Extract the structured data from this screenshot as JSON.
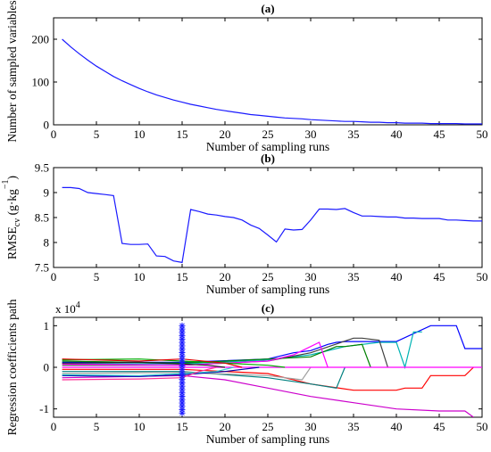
{
  "chart_data": [
    {
      "type": "line",
      "title": "(a)",
      "xlabel": "Number of sampling runs",
      "ylabel": "Number of sampled variables",
      "xlim": [
        0,
        50
      ],
      "ylim": [
        0,
        250
      ],
      "xticks": [
        0,
        5,
        10,
        15,
        20,
        25,
        30,
        35,
        40,
        45,
        50
      ],
      "yticks": [
        0,
        100,
        200
      ],
      "grid": false,
      "series": [
        {
          "color": "#1a1aff",
          "x": [
            1,
            2,
            3,
            4,
            5,
            6,
            7,
            8,
            9,
            10,
            11,
            12,
            13,
            14,
            15,
            16,
            17,
            18,
            19,
            20,
            21,
            22,
            23,
            24,
            25,
            26,
            27,
            28,
            29,
            30,
            31,
            32,
            33,
            34,
            35,
            36,
            37,
            38,
            39,
            40,
            41,
            42,
            43,
            44,
            45,
            46,
            47,
            48,
            49,
            50
          ],
          "y": [
            200,
            182,
            166,
            151,
            137,
            125,
            113,
            103,
            94,
            85,
            77,
            70,
            64,
            58,
            53,
            48,
            44,
            40,
            36,
            33,
            30,
            27,
            24,
            22,
            20,
            18,
            16,
            15,
            14,
            12,
            11,
            10,
            9,
            8,
            8,
            7,
            6,
            6,
            5,
            5,
            4,
            4,
            4,
            3,
            3,
            3,
            3,
            2,
            2,
            2
          ]
        }
      ]
    },
    {
      "type": "line",
      "title": "(b)",
      "xlabel": "Number of sampling runs",
      "ylabel_main": "RMSE",
      "ylabel_sub": "cv",
      "ylabel_unit": " (g·kg",
      "ylabel_exp": "−1",
      "ylabel_end": ")",
      "xlim": [
        0,
        50
      ],
      "ylim": [
        7.5,
        9.5
      ],
      "xticks": [
        0,
        5,
        10,
        15,
        20,
        25,
        30,
        35,
        40,
        45,
        50
      ],
      "yticks": [
        7.5,
        8,
        8.5,
        9,
        9.5
      ],
      "grid": false,
      "series": [
        {
          "color": "#1a1aff",
          "x": [
            1,
            2,
            3,
            4,
            5,
            6,
            7,
            8,
            9,
            10,
            11,
            12,
            13,
            14,
            15,
            16,
            17,
            18,
            19,
            20,
            21,
            22,
            23,
            24,
            25,
            26,
            27,
            28,
            29,
            30,
            31,
            32,
            33,
            34,
            35,
            36,
            37,
            38,
            39,
            40,
            41,
            42,
            43,
            44,
            45,
            46,
            47,
            48,
            49,
            50
          ],
          "y": [
            9.1,
            9.1,
            9.08,
            9.0,
            8.98,
            8.96,
            8.94,
            7.98,
            7.96,
            7.96,
            7.97,
            7.73,
            7.72,
            7.63,
            7.6,
            8.66,
            8.62,
            8.57,
            8.55,
            8.52,
            8.5,
            8.45,
            8.35,
            8.28,
            8.15,
            8.01,
            8.27,
            8.25,
            8.26,
            8.45,
            8.67,
            8.67,
            8.66,
            8.68,
            8.6,
            8.53,
            8.53,
            8.52,
            8.51,
            8.51,
            8.49,
            8.49,
            8.48,
            8.48,
            8.48,
            8.45,
            8.45,
            8.44,
            8.43,
            8.43
          ]
        }
      ]
    },
    {
      "type": "line",
      "title": "(c)",
      "xlabel": "Number of sampling runs",
      "ylabel": "Regression coefficients path",
      "yscale_label": "x 10",
      "yscale_exp": "4",
      "xlim": [
        0,
        50
      ],
      "ylim": [
        -1.2,
        1.2
      ],
      "xticks": [
        0,
        5,
        10,
        15,
        20,
        25,
        30,
        35,
        40,
        45,
        50
      ],
      "yticks": [
        -1,
        0,
        1
      ],
      "grid": false,
      "marker_line": {
        "x": 15,
        "color": "#1a1aff",
        "y_from": -1.1,
        "y_to": 1.0
      },
      "series": [
        {
          "color": "#0000ff",
          "x": [
            1,
            15,
            25,
            28,
            30,
            32,
            33,
            34,
            39,
            40,
            44,
            45,
            47,
            48,
            50
          ],
          "y": [
            0.12,
            0.12,
            0.2,
            0.35,
            0.4,
            0.55,
            0.6,
            0.62,
            0.62,
            0.62,
            1.0,
            1.0,
            1.0,
            0.45,
            0.45
          ]
        },
        {
          "color": "#00b3b3",
          "x": [
            1,
            15,
            25,
            30,
            34,
            38,
            40,
            41,
            42,
            43
          ],
          "y": [
            0.1,
            0.08,
            0.18,
            0.3,
            0.5,
            0.6,
            0.6,
            0.0,
            0.85,
            0.85
          ]
        },
        {
          "color": "#404040",
          "x": [
            1,
            15,
            25,
            30,
            35,
            36,
            38,
            39
          ],
          "y": [
            0.05,
            0.05,
            0.15,
            0.35,
            0.7,
            0.7,
            0.65,
            0.0
          ]
        },
        {
          "color": "#008000",
          "x": [
            1,
            15,
            25,
            30,
            33,
            34,
            36,
            37
          ],
          "y": [
            0.15,
            0.1,
            0.2,
            0.25,
            0.5,
            0.5,
            0.55,
            0.0
          ]
        },
        {
          "color": "#ff00ff",
          "x": [
            1,
            15,
            25,
            28,
            30,
            31,
            32
          ],
          "y": [
            0.08,
            0.05,
            0.15,
            0.3,
            0.5,
            0.6,
            0.0
          ]
        },
        {
          "color": "#ff0000",
          "x": [
            1,
            15,
            25,
            30,
            35,
            40,
            41,
            43,
            44,
            48,
            49
          ],
          "y": [
            -0.05,
            -0.05,
            -0.15,
            -0.4,
            -0.55,
            -0.55,
            -0.5,
            -0.5,
            -0.2,
            -0.2,
            0.0
          ]
        },
        {
          "color": "#cc00cc",
          "x": [
            1,
            15,
            20,
            25,
            30,
            35,
            40,
            45,
            48,
            49
          ],
          "y": [
            -0.25,
            -0.2,
            -0.3,
            -0.5,
            -0.7,
            -0.85,
            -1.0,
            -1.05,
            -1.05,
            -1.2
          ]
        },
        {
          "color": "#008080",
          "x": [
            1,
            15,
            25,
            30,
            33,
            34
          ],
          "y": [
            -0.1,
            -0.1,
            -0.25,
            -0.4,
            -0.5,
            0.0
          ]
        },
        {
          "color": "#a0a0a0",
          "x": [
            1,
            15,
            25,
            29,
            30
          ],
          "y": [
            -0.15,
            -0.12,
            -0.2,
            -0.3,
            0.0
          ]
        },
        {
          "color": "#ff00ff",
          "x": [
            1,
            15,
            25,
            30,
            50
          ],
          "y": [
            0.0,
            0.0,
            0.0,
            0.0,
            0.0
          ]
        },
        {
          "color": "#00aa00",
          "x": [
            1,
            10,
            15,
            20,
            25,
            27
          ],
          "y": [
            0.18,
            0.2,
            0.15,
            0.1,
            0.05,
            0.0
          ]
        },
        {
          "color": "#0000aa",
          "x": [
            1,
            10,
            15,
            20,
            24
          ],
          "y": [
            -0.2,
            -0.22,
            -0.18,
            -0.1,
            0.0
          ]
        },
        {
          "color": "#e00000",
          "x": [
            1,
            10,
            15,
            20,
            22
          ],
          "y": [
            0.2,
            0.15,
            0.2,
            0.1,
            0.0
          ]
        },
        {
          "color": "#33cccc",
          "x": [
            1,
            10,
            15,
            19,
            21
          ],
          "y": [
            -0.18,
            -0.2,
            -0.15,
            -0.1,
            0.0
          ]
        },
        {
          "color": "#222222",
          "x": [
            1,
            10,
            15,
            18,
            20
          ],
          "y": [
            0.1,
            0.12,
            0.08,
            0.05,
            0.0
          ]
        },
        {
          "color": "#ff3399",
          "x": [
            1,
            10,
            15,
            17,
            19
          ],
          "y": [
            -0.3,
            -0.28,
            -0.25,
            -0.1,
            0.0
          ]
        }
      ]
    }
  ]
}
